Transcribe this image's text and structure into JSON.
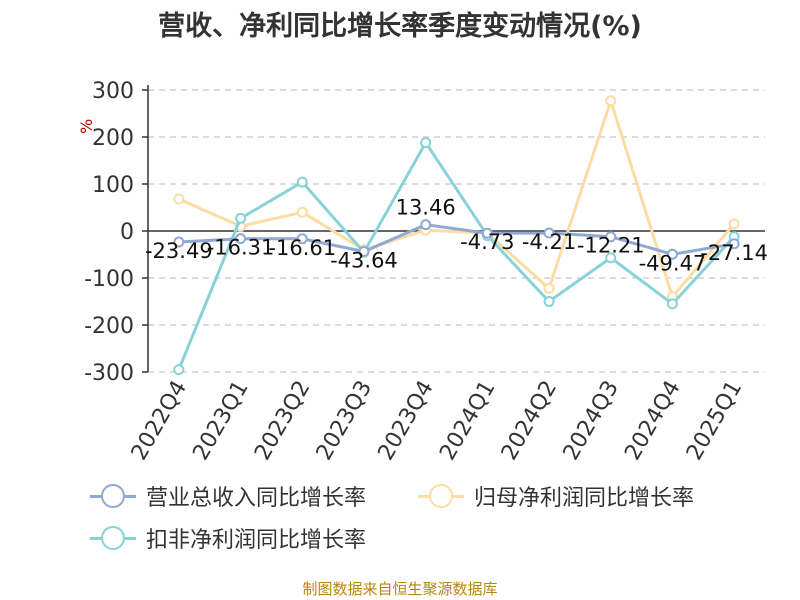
{
  "chart_data": {
    "type": "line",
    "title": "营收、净利同比增长率季度变动情况(%)",
    "ylabel": "%",
    "ylim": [
      -300,
      300
    ],
    "yticks": [
      300,
      200,
      100,
      0,
      -100,
      -200,
      -300
    ],
    "grid": true,
    "legend_position": "bottom",
    "categories": [
      "2022Q4",
      "2023Q1",
      "2023Q2",
      "2023Q3",
      "2023Q4",
      "2024Q1",
      "2024Q2",
      "2024Q3",
      "2024Q4",
      "2025Q1"
    ],
    "series": [
      {
        "name": "营业总收入同比增长率",
        "color": "#8fa9d4",
        "values": [
          -23.49,
          -16.31,
          -16.61,
          -43.64,
          13.46,
          -4.73,
          -4.21,
          -12.21,
          -49.47,
          -27.14
        ],
        "labels": [
          "-23.49",
          "-16.31",
          "-16.61",
          "-43.64",
          "13.46",
          "-4.73",
          "-4.21",
          "-12.21",
          "-49.47",
          "-27.14"
        ]
      },
      {
        "name": "归母净利润同比增长率",
        "color": "#fcdca3",
        "values": [
          68,
          10,
          40,
          -40,
          2,
          -5,
          -122,
          277,
          -140,
          15
        ]
      },
      {
        "name": "扣非净利润同比增长率",
        "color": "#87d3d8",
        "values": [
          -295,
          27,
          104,
          -45,
          188,
          -10,
          -150,
          -57,
          -155,
          -12
        ]
      }
    ]
  },
  "source": "制图数据来自恒生聚源数据库"
}
